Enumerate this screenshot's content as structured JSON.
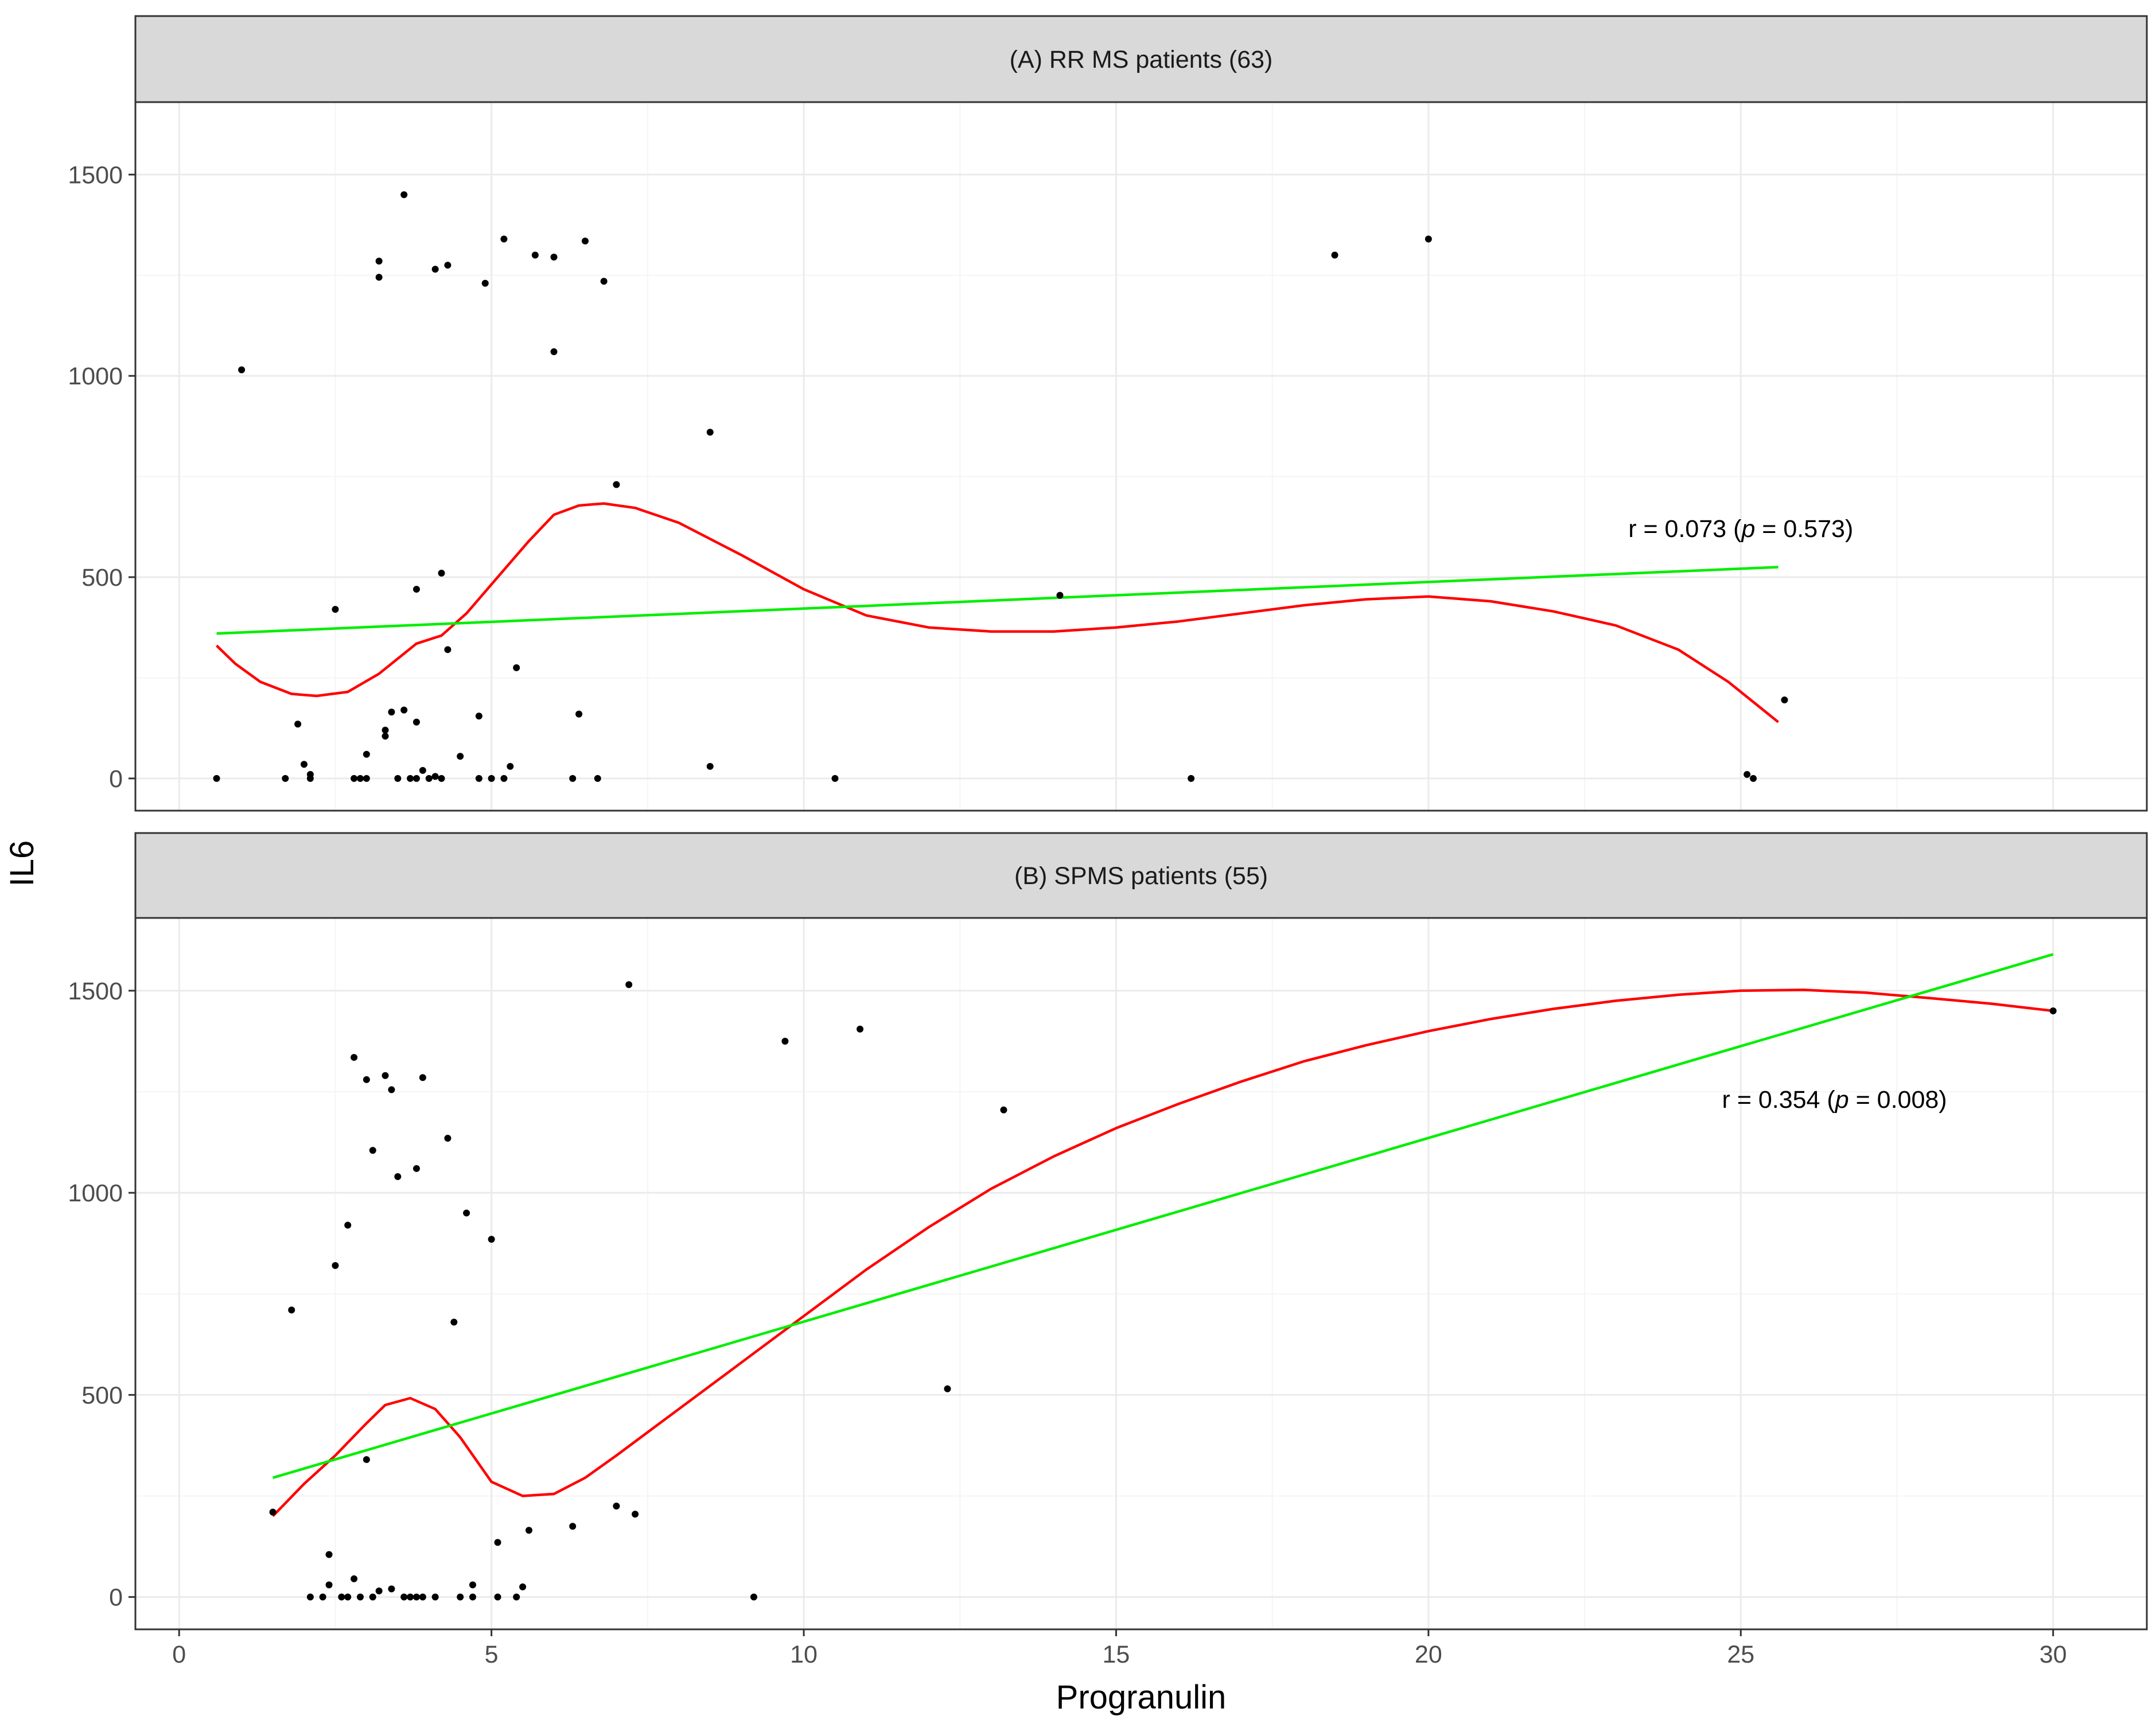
{
  "chart_data": {
    "type": "scatter",
    "ylabel": "IL6",
    "xlabel": "Progranulin",
    "x_ticks": [
      0,
      5,
      10,
      15,
      20,
      25,
      30
    ],
    "y_ticks": [
      0,
      500,
      1000,
      1500
    ],
    "xlim": [
      -0.7,
      31.5
    ],
    "ylim": [
      -80,
      1680
    ],
    "grid": true,
    "colors": {
      "points": "#000000",
      "linear_fit": "#00ee00",
      "loess_fit": "#ff0000",
      "strip_bg": "#d9d9d9",
      "grid_major": "#ebebeb",
      "grid_minor": "#f5f5f5"
    },
    "panels": [
      {
        "strip_label": "(A) RR MS patients (63)",
        "annotation": {
          "prefix": "r = 0.073 (",
          "p_symbol": "p",
          "suffix": " = 0.573)",
          "x": 25,
          "y": 600
        },
        "points": [
          [
            0.6,
            0
          ],
          [
            1.0,
            1015
          ],
          [
            1.7,
            0
          ],
          [
            1.9,
            135
          ],
          [
            2.0,
            35
          ],
          [
            2.1,
            10
          ],
          [
            2.1,
            0
          ],
          [
            2.5,
            420
          ],
          [
            2.8,
            0
          ],
          [
            2.9,
            0
          ],
          [
            3.0,
            0
          ],
          [
            3.0,
            60
          ],
          [
            3.2,
            1285
          ],
          [
            3.2,
            1245
          ],
          [
            3.3,
            105
          ],
          [
            3.3,
            120
          ],
          [
            3.4,
            165
          ],
          [
            3.5,
            0
          ],
          [
            3.6,
            170
          ],
          [
            3.6,
            1450
          ],
          [
            3.7,
            0
          ],
          [
            3.8,
            0
          ],
          [
            3.8,
            140
          ],
          [
            3.8,
            470
          ],
          [
            3.9,
            20
          ],
          [
            4.0,
            0
          ],
          [
            4.1,
            5
          ],
          [
            4.1,
            1265
          ],
          [
            4.2,
            510
          ],
          [
            4.2,
            0
          ],
          [
            4.3,
            320
          ],
          [
            4.3,
            1275
          ],
          [
            4.5,
            55
          ],
          [
            4.8,
            155
          ],
          [
            4.8,
            0
          ],
          [
            4.9,
            1230
          ],
          [
            5.0,
            0
          ],
          [
            5.2,
            1340
          ],
          [
            5.2,
            0
          ],
          [
            5.3,
            30
          ],
          [
            5.4,
            275
          ],
          [
            5.7,
            1300
          ],
          [
            6.0,
            1295
          ],
          [
            6.0,
            1060
          ],
          [
            6.3,
            0
          ],
          [
            6.4,
            160
          ],
          [
            6.5,
            1335
          ],
          [
            6.7,
            0
          ],
          [
            6.8,
            1235
          ],
          [
            7.0,
            730
          ],
          [
            8.5,
            30
          ],
          [
            8.5,
            860
          ],
          [
            10.5,
            0
          ],
          [
            14.1,
            455
          ],
          [
            16.2,
            0
          ],
          [
            18.5,
            1300
          ],
          [
            20.0,
            1340
          ],
          [
            25.1,
            10
          ],
          [
            25.2,
            0
          ],
          [
            25.7,
            195
          ]
        ],
        "linear_fit": [
          [
            0.6,
            360
          ],
          [
            25.6,
            525
          ]
        ],
        "loess_fit": [
          [
            0.6,
            330
          ],
          [
            0.9,
            285
          ],
          [
            1.3,
            240
          ],
          [
            1.8,
            210
          ],
          [
            2.2,
            205
          ],
          [
            2.7,
            215
          ],
          [
            3.2,
            260
          ],
          [
            3.8,
            335
          ],
          [
            4.2,
            355
          ],
          [
            4.6,
            410
          ],
          [
            5.1,
            500
          ],
          [
            5.6,
            590
          ],
          [
            6.0,
            655
          ],
          [
            6.4,
            678
          ],
          [
            6.8,
            683
          ],
          [
            7.3,
            672
          ],
          [
            8.0,
            635
          ],
          [
            9.0,
            555
          ],
          [
            10.0,
            470
          ],
          [
            11.0,
            405
          ],
          [
            12.0,
            375
          ],
          [
            13.0,
            365
          ],
          [
            14.0,
            365
          ],
          [
            15.0,
            375
          ],
          [
            16.0,
            390
          ],
          [
            17.0,
            410
          ],
          [
            18.0,
            430
          ],
          [
            19.0,
            445
          ],
          [
            20.0,
            452
          ],
          [
            21.0,
            440
          ],
          [
            22.0,
            415
          ],
          [
            23.0,
            380
          ],
          [
            24.0,
            320
          ],
          [
            24.8,
            240
          ],
          [
            25.6,
            140
          ]
        ]
      },
      {
        "strip_label": "(B) SPMS patients (55)",
        "annotation": {
          "prefix": "r = 0.354 (",
          "p_symbol": "p",
          "suffix": " = 0.008)",
          "x": 26.5,
          "y": 1210
        },
        "points": [
          [
            1.5,
            210
          ],
          [
            1.8,
            710
          ],
          [
            2.1,
            0
          ],
          [
            2.3,
            0
          ],
          [
            2.4,
            30
          ],
          [
            2.4,
            105
          ],
          [
            2.5,
            820
          ],
          [
            2.6,
            0
          ],
          [
            2.7,
            0
          ],
          [
            2.7,
            920
          ],
          [
            2.8,
            1335
          ],
          [
            2.8,
            45
          ],
          [
            2.9,
            0
          ],
          [
            3.0,
            1280
          ],
          [
            3.0,
            340
          ],
          [
            3.1,
            0
          ],
          [
            3.1,
            1105
          ],
          [
            3.2,
            15
          ],
          [
            3.3,
            1290
          ],
          [
            3.4,
            1255
          ],
          [
            3.4,
            20
          ],
          [
            3.5,
            1040
          ],
          [
            3.6,
            0
          ],
          [
            3.7,
            0
          ],
          [
            3.8,
            0
          ],
          [
            3.8,
            1060
          ],
          [
            3.9,
            0
          ],
          [
            3.9,
            1285
          ],
          [
            4.1,
            0
          ],
          [
            4.3,
            1135
          ],
          [
            4.4,
            680
          ],
          [
            4.5,
            0
          ],
          [
            4.6,
            950
          ],
          [
            4.7,
            0
          ],
          [
            4.7,
            30
          ],
          [
            5.0,
            885
          ],
          [
            5.1,
            135
          ],
          [
            5.1,
            0
          ],
          [
            5.4,
            0
          ],
          [
            5.5,
            25
          ],
          [
            5.6,
            165
          ],
          [
            6.3,
            175
          ],
          [
            7.0,
            225
          ],
          [
            7.2,
            1515
          ],
          [
            7.3,
            205
          ],
          [
            9.2,
            0
          ],
          [
            9.7,
            1375
          ],
          [
            10.9,
            1405
          ],
          [
            12.3,
            515
          ],
          [
            13.2,
            1205
          ],
          [
            30.0,
            1450
          ]
        ],
        "linear_fit": [
          [
            1.5,
            295
          ],
          [
            30.0,
            1590
          ]
        ],
        "loess_fit": [
          [
            1.5,
            200
          ],
          [
            2.0,
            280
          ],
          [
            2.5,
            350
          ],
          [
            3.0,
            430
          ],
          [
            3.3,
            475
          ],
          [
            3.7,
            492
          ],
          [
            4.1,
            465
          ],
          [
            4.5,
            395
          ],
          [
            5.0,
            285
          ],
          [
            5.5,
            250
          ],
          [
            6.0,
            255
          ],
          [
            6.5,
            295
          ],
          [
            7.0,
            350
          ],
          [
            8.0,
            465
          ],
          [
            9.0,
            580
          ],
          [
            10.0,
            695
          ],
          [
            11.0,
            810
          ],
          [
            12.0,
            915
          ],
          [
            13.0,
            1010
          ],
          [
            14.0,
            1090
          ],
          [
            15.0,
            1160
          ],
          [
            16.0,
            1220
          ],
          [
            17.0,
            1275
          ],
          [
            18.0,
            1325
          ],
          [
            19.0,
            1365
          ],
          [
            20.0,
            1400
          ],
          [
            21.0,
            1430
          ],
          [
            22.0,
            1455
          ],
          [
            23.0,
            1475
          ],
          [
            24.0,
            1490
          ],
          [
            25.0,
            1500
          ],
          [
            26.0,
            1502
          ],
          [
            27.0,
            1495
          ],
          [
            28.0,
            1482
          ],
          [
            29.0,
            1468
          ],
          [
            30.0,
            1450
          ]
        ]
      }
    ]
  }
}
